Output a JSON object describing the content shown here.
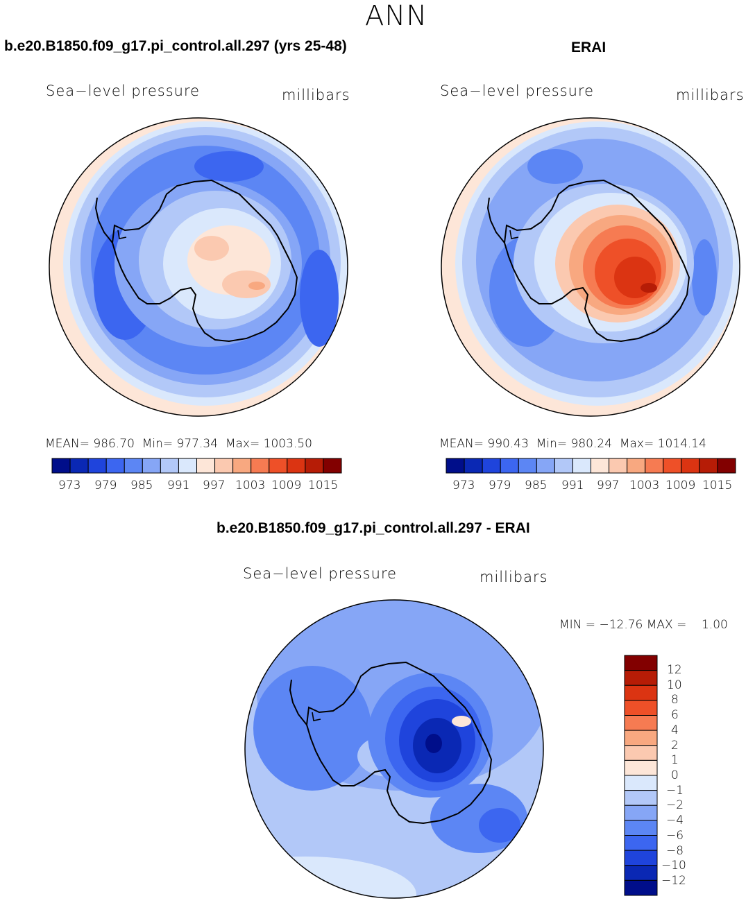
{
  "figure_title": "ANN",
  "colors": {
    "abs_scale": [
      "#000e8a",
      "#0a28b4",
      "#1f44dc",
      "#3c66f0",
      "#5c86f4",
      "#86a6f6",
      "#b2c8f8",
      "#dae8fc",
      "#fde6d8",
      "#fbc9b0",
      "#f8a880",
      "#f67b52",
      "#ee5028",
      "#db3412",
      "#b61c06",
      "#820000"
    ],
    "diff_scale": [
      "#820000",
      "#b61c06",
      "#db3412",
      "#ee5028",
      "#f67b52",
      "#f8a880",
      "#fbc9b0",
      "#fde6d8",
      "#dae8fc",
      "#b2c8f8",
      "#86a6f6",
      "#5c86f4",
      "#3c66f0",
      "#1f44dc",
      "#0a28b4",
      "#000e8a"
    ]
  },
  "panels": [
    {
      "title": "b.e20.B1850.f09_g17.pi_control.all.297 (yrs 25-48)",
      "field": "Sea−level pressure",
      "units": "millibars",
      "mean_label": "MEAN=",
      "mean": "986.70",
      "min_label": "Min=",
      "min": "977.34",
      "max_label": "Max=",
      "max": "1003.50",
      "ticks": [
        "973",
        "979",
        "985",
        "991",
        "997",
        "1003",
        "1009",
        "1015"
      ]
    },
    {
      "title": "ERAI",
      "field": "Sea−level pressure",
      "units": "millibars",
      "mean_label": "MEAN=",
      "mean": "990.43",
      "min_label": "Min=",
      "min": "980.24",
      "max_label": "Max=",
      "max": "1014.14",
      "ticks": [
        "973",
        "979",
        "985",
        "991",
        "997",
        "1003",
        "1009",
        "1015"
      ]
    },
    {
      "title": "b.e20.B1850.f09_g17.pi_control.all.297 - ERAI",
      "field": "Sea−level pressure",
      "units": "millibars",
      "minmax_text": "MIN = −12.76 MAX =    1.00",
      "ticks": [
        "12",
        "10",
        "8",
        "6",
        "4",
        "2",
        "1",
        "0",
        "−1",
        "−2",
        "−4",
        "−6",
        "−8",
        "−10",
        "−12"
      ]
    }
  ]
}
